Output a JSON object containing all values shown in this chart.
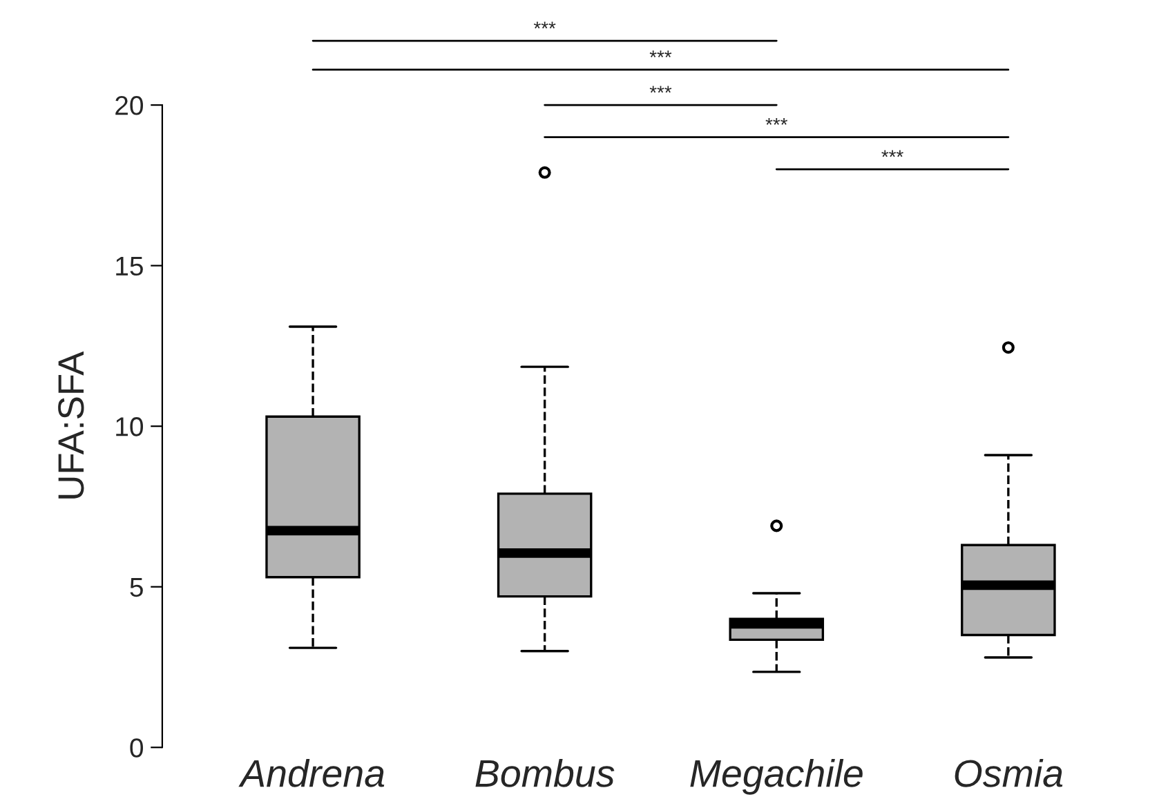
{
  "chart_data": {
    "type": "box",
    "ylabel": "UFA:SFA",
    "categories": [
      "Andrena",
      "Bombus",
      "Megachile",
      "Osmia"
    ],
    "boxes": [
      {
        "low": 3.1,
        "q1": 5.3,
        "median": 6.75,
        "q3": 10.3,
        "high": 13.1
      },
      {
        "low": 3.0,
        "q1": 4.7,
        "median": 6.05,
        "q3": 7.9,
        "high": 11.85,
        "outliers": [
          17.9
        ]
      },
      {
        "low": 2.35,
        "q1": 3.35,
        "median": 3.85,
        "q3": 4.0,
        "high": 4.8,
        "outliers": [
          6.9
        ]
      },
      {
        "low": 2.8,
        "q1": 3.5,
        "median": 5.05,
        "q3": 6.3,
        "high": 9.1,
        "outliers": [
          12.45
        ]
      }
    ],
    "color": "#b3b3b3",
    "ylim": [
      0,
      20
    ],
    "yticks": [
      0,
      5,
      10,
      15,
      20
    ],
    "grid": false,
    "annotations": [
      "***",
      "***",
      "***",
      "***",
      "***"
    ]
  }
}
